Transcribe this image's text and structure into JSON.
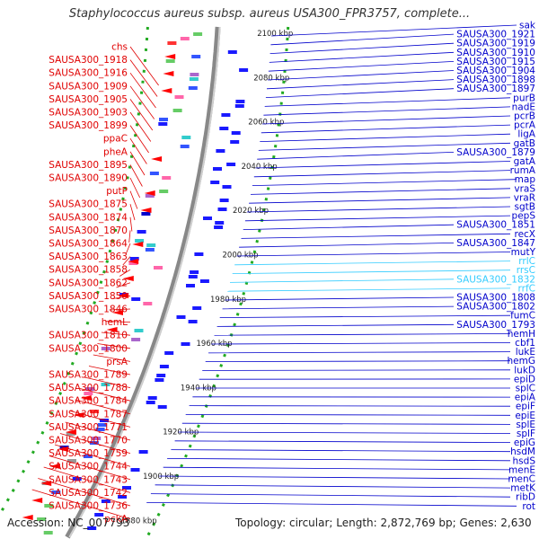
{
  "title": "Staphylococcus aureus subsp. aureus USA300_FPR3757, complete...",
  "footer": {
    "accession": "Accession: NC_007793",
    "summary": "Topology: circular; Length: 2,872,769 bp; Genes: 2,630"
  },
  "colors": {
    "left_labels": "#e00000",
    "right_labels": "#0000cc",
    "rna_labels": "#33ccff",
    "ruler": "#666666"
  },
  "ruler_ticks": [
    "2100 kbp",
    "2080 kbp",
    "2060 kbp",
    "2040 kbp",
    "2020 kbp",
    "2000 kbp",
    "1980 kbp",
    "1960 kbp",
    "1940 kbp",
    "1920 kbp",
    "1900 kbp",
    "1880 kbp"
  ],
  "left_labels": [
    "chs",
    "SAUSA300_1918",
    "SAUSA300_1916",
    "SAUSA300_1909",
    "SAUSA300_1905",
    "SAUSA300_1903",
    "SAUSA300_1899",
    "ppaC",
    "pheA",
    "SAUSA300_1895",
    "SAUSA300_1890",
    "putP",
    "SAUSA300_1875",
    "SAUSA300_1874",
    "SAUSA300_1870",
    "SAUSA300_1864",
    "SAUSA300_1863",
    "SAUSA300_1858",
    "SAUSA300_1862",
    "SAUSA300_1850",
    "SAUSA300_1846",
    "hemL",
    "SAUSA300_1810",
    "SAUSA300_1800",
    "prsA",
    "SAUSA300_1789",
    "SAUSA300_1788",
    "SAUSA300_1784",
    "SAUSA300_1787",
    "SAUSA300_1771",
    "SAUSA300_1770",
    "SAUSA300_1759",
    "SAUSA300_1744",
    "SAUSA300_1743",
    "SAUSA300_1742",
    "SAUSA300_1736",
    "pckA"
  ],
  "right_labels": [
    "sak",
    "SAUSA300_1921",
    "SAUSA300_1919",
    "SAUSA300_1910",
    "SAUSA300_1915",
    "SAUSA300_1904",
    "SAUSA300_1898",
    "SAUSA300_1897",
    "purB",
    "nadE",
    "pcrB",
    "pcrA",
    "ligA",
    "gatB",
    "SAUSA300_1879",
    "gatA",
    "rumA",
    "map",
    "vraS",
    "vraR",
    "sgtB",
    "pepS",
    "SAUSA300_1851",
    "recX",
    "SAUSA300_1847",
    "mutY",
    "rrlC",
    "rrsC",
    "SAUSA300_1832",
    "rrfC",
    "SAUSA300_1808",
    "SAUSA300_1802",
    "fumC",
    "SAUSA300_1793",
    "hemH",
    "cbf1",
    "lukE",
    "hemG",
    "lukD",
    "epiD",
    "splC",
    "epiA",
    "epiF",
    "epiE",
    "splE",
    "splF",
    "epiG",
    "hsdM",
    "hsdS",
    "menE",
    "menC",
    "metK",
    "ribD",
    "rot"
  ],
  "rna_labels": [
    "rrlC",
    "rrsC",
    "SAUSA300_1832",
    "rrfC"
  ]
}
